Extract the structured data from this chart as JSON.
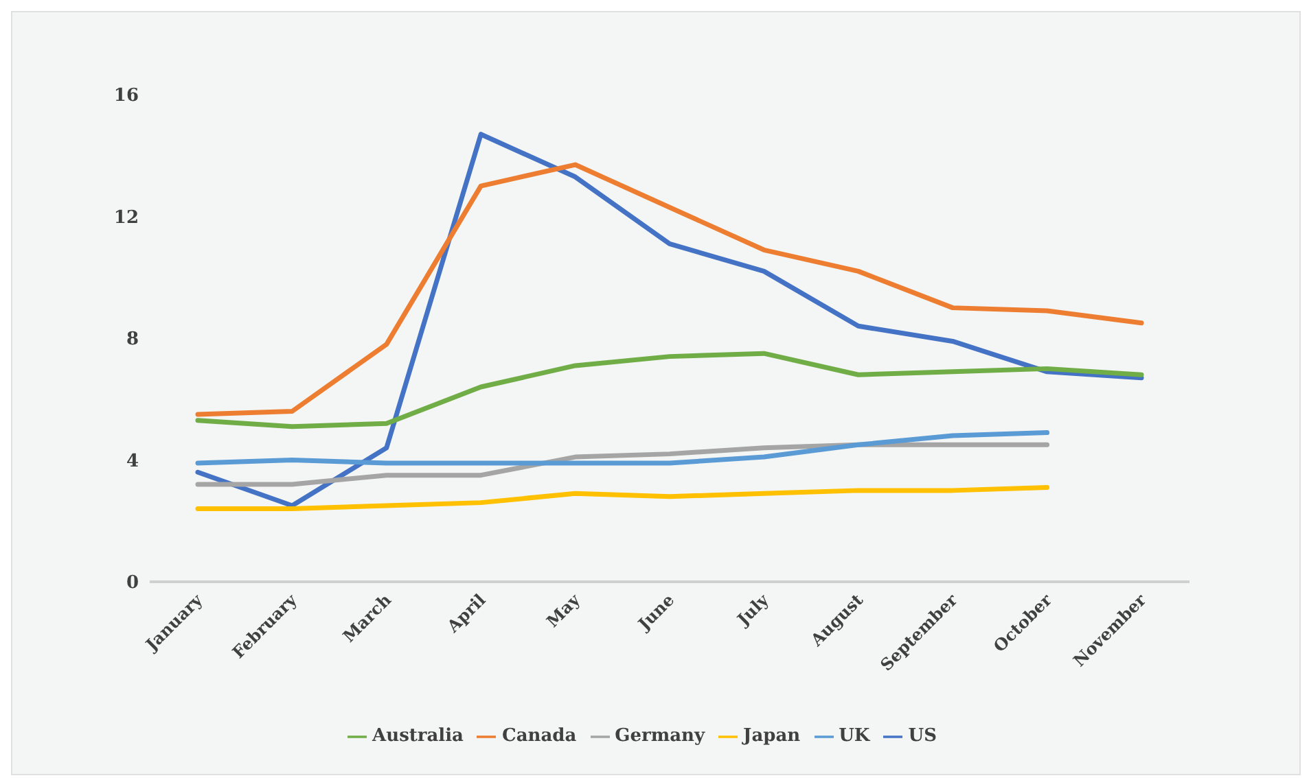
{
  "chart_data": {
    "type": "line",
    "categories": [
      "January",
      "February",
      "March",
      "April",
      "May",
      "June",
      "July",
      "August",
      "September",
      "October",
      "November"
    ],
    "series": [
      {
        "name": "US",
        "color": "#4472c4",
        "values": [
          3.6,
          2.5,
          4.4,
          14.7,
          13.3,
          11.1,
          10.2,
          8.4,
          7.9,
          6.9,
          6.7
        ]
      },
      {
        "name": "Canada",
        "color": "#ed7d31",
        "values": [
          5.5,
          5.6,
          7.8,
          13.0,
          13.7,
          12.3,
          10.9,
          10.2,
          9.0,
          8.9,
          8.5
        ]
      },
      {
        "name": "Germany",
        "color": "#a5a5a5",
        "values": [
          3.2,
          3.2,
          3.5,
          3.5,
          4.1,
          4.2,
          4.4,
          4.5,
          4.5,
          4.5,
          null
        ]
      },
      {
        "name": "Japan",
        "color": "#ffc000",
        "values": [
          2.4,
          2.4,
          2.5,
          2.6,
          2.9,
          2.8,
          2.9,
          3.0,
          3.0,
          3.1,
          null
        ]
      },
      {
        "name": "UK",
        "color": "#5b9bd5",
        "values": [
          3.9,
          4.0,
          3.9,
          3.9,
          3.9,
          3.9,
          4.1,
          4.5,
          4.8,
          4.9,
          null
        ]
      },
      {
        "name": "Australia",
        "color": "#70ad47",
        "values": [
          5.3,
          5.1,
          5.2,
          6.4,
          7.1,
          7.4,
          7.5,
          6.8,
          6.9,
          7.0,
          6.8
        ]
      }
    ],
    "ylim": [
      0,
      16
    ],
    "yticks": [
      0,
      4,
      8,
      12,
      16
    ],
    "grid": false,
    "legend": "bottom",
    "marker": "none",
    "line_style": "solid"
  }
}
